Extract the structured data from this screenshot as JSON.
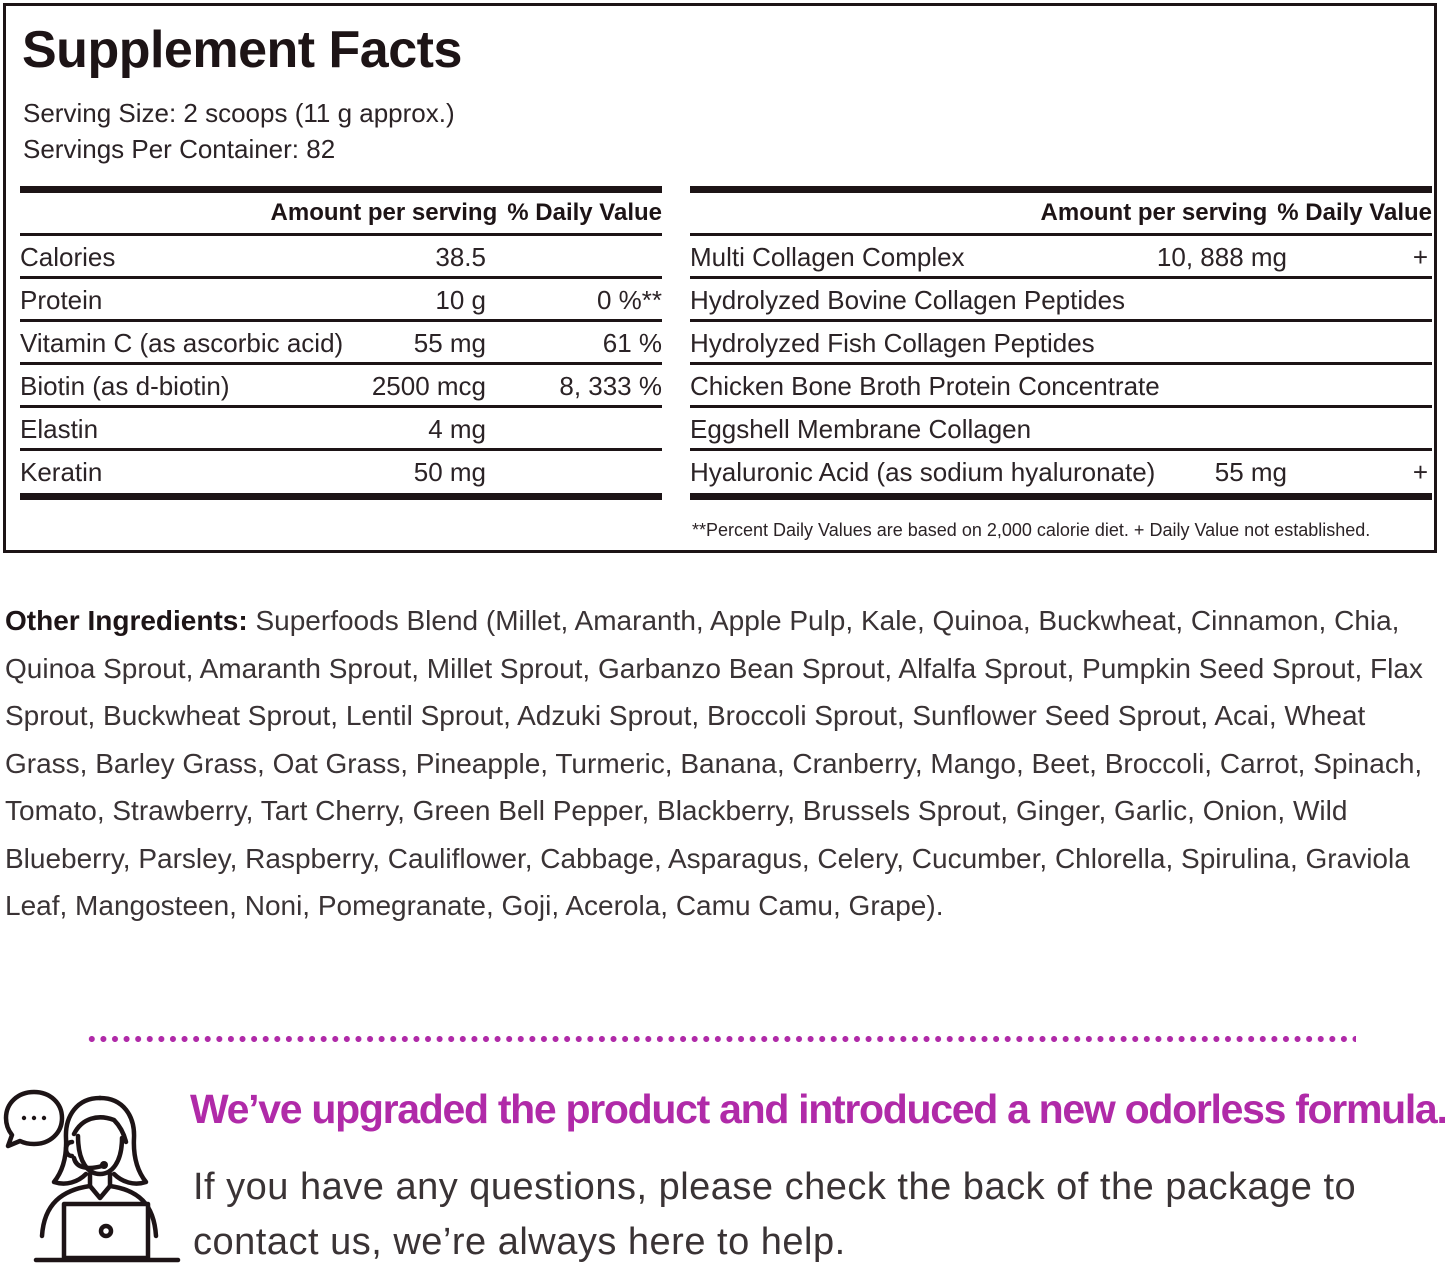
{
  "facts": {
    "title": "Supplement Facts",
    "serving_size": "Serving Size: 2 scoops (11 g approx.)",
    "servings_per_container": "Servings Per Container: 82",
    "header_amount": "Amount per serving",
    "header_dv": "% Daily Value",
    "left_rows": [
      {
        "name": "Calories",
        "amount": "38.5",
        "dv": ""
      },
      {
        "name": "Protein",
        "amount": "10 g",
        "dv": "0 %**"
      },
      {
        "name": "Vitamin C (as ascorbic acid)",
        "amount": "55 mg",
        "dv": "61 %"
      },
      {
        "name": "Biotin (as d-biotin)",
        "amount": "2500 mcg",
        "dv": "8, 333 %"
      },
      {
        "name": "Elastin",
        "amount": "4 mg",
        "dv": ""
      },
      {
        "name": "Keratin",
        "amount": "50 mg",
        "dv": ""
      }
    ],
    "right_rows": [
      {
        "name": "Multi Collagen Complex",
        "amount": "10, 888 mg",
        "dv": "+"
      },
      {
        "name": "Hydrolyzed Bovine Collagen Peptides",
        "amount": "",
        "dv": ""
      },
      {
        "name": "Hydrolyzed Fish Collagen Peptides",
        "amount": "",
        "dv": ""
      },
      {
        "name": "Chicken Bone Broth Protein Concentrate",
        "amount": "",
        "dv": ""
      },
      {
        "name": "Eggshell Membrane Collagen",
        "amount": "",
        "dv": ""
      },
      {
        "name": "Hyaluronic Acid (as sodium hyaluronate)",
        "amount": "55 mg",
        "dv": "+"
      }
    ],
    "footnote": "**Percent Daily Values are based on 2,000 calorie diet. + Daily Value not established."
  },
  "other_ingredients": {
    "label": "Other Ingredients:",
    "text": " Superfoods Blend (Millet, Amaranth, Apple Pulp, Kale, Quinoa, Buckwheat, Cinnamon, Chia, Quinoa Sprout, Amaranth Sprout, Millet Sprout, Garbanzo Bean Sprout, Alfalfa Sprout, Pumpkin Seed Sprout, Flax Sprout, Buckwheat Sprout, Lentil Sprout, Adzuki Sprout, Broccoli Sprout, Sunflower Seed Sprout, Acai, Wheat Grass, Barley Grass, Oat Grass, Pineapple, Turmeric, Banana, Cranberry, Mango, Beet, Broccoli, Carrot, Spinach, Tomato, Strawberry, Tart Cherry, Green Bell Pepper, Blackberry, Brussels Sprout, Ginger, Garlic, Onion, Wild Blueberry, Parsley, Raspberry, Cauliflower, Cabbage, Asparagus, Celery, Cucumber, Chlorella, Spirulina, Graviola Leaf, Mangosteen, Noni, Pomegranate, Goji, Acerola, Camu Camu, Grape)."
  },
  "notice": {
    "headline": "We’ve upgraded the product and introduced a new odorless formula.",
    "body": "If you have any questions, please check the back of the package to contact us, we’re always here to help."
  },
  "colors": {
    "accent": "#b02aa8",
    "rule": "#1d1416",
    "text": "#2b2326"
  },
  "icons": [
    "customer-support-icon",
    "chat-bubble-icon",
    "laptop-icon"
  ]
}
